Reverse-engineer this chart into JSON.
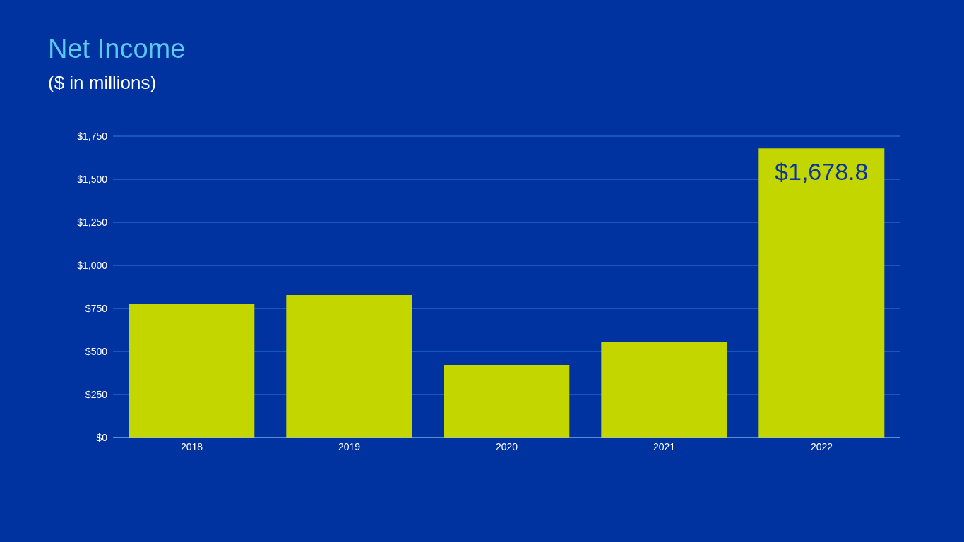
{
  "chart_data": {
    "type": "bar",
    "title": "Net Income",
    "subtitle": "($ in millions)",
    "categories": [
      "2018",
      "2019",
      "2020",
      "2021",
      "2022"
    ],
    "values": [
      775,
      828,
      422,
      553,
      1678.8
    ],
    "color": "#c4d600",
    "value_labels": [
      null,
      null,
      null,
      null,
      "$1,678.8"
    ],
    "ylim": [
      0,
      1750
    ],
    "yticks": [
      {
        "value": 0,
        "label": "$0"
      },
      {
        "value": 250,
        "label": "$250"
      },
      {
        "value": 500,
        "label": "$500"
      },
      {
        "value": 750,
        "label": "$750"
      },
      {
        "value": 1000,
        "label": "$1,000"
      },
      {
        "value": 1250,
        "label": "$1,250"
      },
      {
        "value": 1500,
        "label": "$1,500"
      },
      {
        "value": 1750,
        "label": "$1,750"
      }
    ],
    "grid": "y",
    "legend": false
  }
}
